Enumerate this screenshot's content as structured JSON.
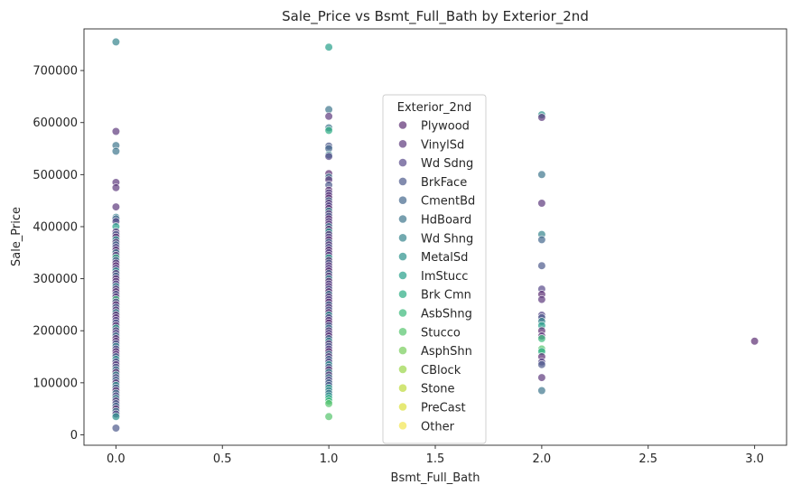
{
  "chart_data": {
    "type": "scatter",
    "title": "Sale_Price vs Bsmt_Full_Bath by Exterior_2nd",
    "xlabel": "Bsmt_Full_Bath",
    "ylabel": "Sale_Price",
    "xlim": [
      -0.15,
      3.15
    ],
    "ylim": [
      -20000,
      780000
    ],
    "x_ticks": [
      0.0,
      0.5,
      1.0,
      1.5,
      2.0,
      2.5,
      3.0
    ],
    "x_tick_labels": [
      "0.0",
      "0.5",
      "1.0",
      "1.5",
      "2.0",
      "2.5",
      "3.0"
    ],
    "y_ticks": [
      0,
      100000,
      200000,
      300000,
      400000,
      500000,
      600000,
      700000
    ],
    "y_tick_labels": [
      "0",
      "100000",
      "200000",
      "300000",
      "400000",
      "500000",
      "600000",
      "700000"
    ],
    "grid": false,
    "legend": {
      "title": "Exterior_2nd",
      "placement": "center",
      "entries": [
        {
          "name": "Plywood",
          "color": "#5c2f73"
        },
        {
          "name": "VinylSd",
          "color": "#5e3a7e"
        },
        {
          "name": "Wd Sdng",
          "color": "#594a8a"
        },
        {
          "name": "BrkFace",
          "color": "#4d5a8c"
        },
        {
          "name": "CmentBd",
          "color": "#45688d"
        },
        {
          "name": "HdBoard",
          "color": "#3e768d"
        },
        {
          "name": "Wd Shng",
          "color": "#36858d"
        },
        {
          "name": "MetalSd",
          "color": "#2b918c"
        },
        {
          "name": "ImStucc",
          "color": "#27a08a"
        },
        {
          "name": "Brk Cmn",
          "color": "#2bad83"
        },
        {
          "name": "AsbShng",
          "color": "#3bb97a"
        },
        {
          "name": "Stucco",
          "color": "#56c46c"
        },
        {
          "name": "AsphShn",
          "color": "#77cd5b"
        },
        {
          "name": "CBlock",
          "color": "#9ad549"
        },
        {
          "name": "Stone",
          "color": "#bdda3c"
        },
        {
          "name": "PreCast",
          "color": "#dbe03c"
        },
        {
          "name": "Other",
          "color": "#f2e550"
        }
      ]
    },
    "series": [
      {
        "x": 0,
        "values": [
          755000,
          583000,
          556000,
          545000,
          485000,
          475000,
          438000,
          418000,
          415000,
          410000,
          400000,
          390000,
          385000,
          380000,
          375000,
          370000,
          365000,
          360000,
          355000,
          350000,
          345000,
          340000,
          335000,
          330000,
          325000,
          320000,
          315000,
          310000,
          305000,
          300000,
          295000,
          290000,
          285000,
          280000,
          275000,
          270000,
          265000,
          260000,
          255000,
          250000,
          245000,
          240000,
          235000,
          230000,
          225000,
          220000,
          215000,
          210000,
          205000,
          200000,
          195000,
          190000,
          185000,
          180000,
          175000,
          170000,
          165000,
          160000,
          155000,
          150000,
          145000,
          140000,
          135000,
          130000,
          125000,
          120000,
          115000,
          110000,
          105000,
          100000,
          95000,
          90000,
          85000,
          80000,
          75000,
          70000,
          65000,
          60000,
          55000,
          50000,
          45000,
          40000,
          35000,
          13000
        ],
        "colors": [
          6,
          1,
          5,
          5,
          1,
          1,
          1,
          6,
          4,
          2,
          8,
          1,
          3,
          0,
          7,
          1,
          4,
          2,
          0,
          5,
          1,
          9,
          3,
          1,
          0,
          2,
          7,
          1,
          4,
          0,
          1,
          2,
          6,
          1,
          0,
          3,
          1,
          10,
          2,
          0,
          4,
          1,
          6,
          0,
          1,
          2,
          3,
          0,
          8,
          1,
          2,
          5,
          0,
          1,
          3,
          6,
          2,
          0,
          1,
          4,
          7,
          2,
          1,
          3,
          5,
          0,
          6,
          2,
          4,
          1,
          7,
          3,
          0,
          5,
          2,
          6,
          1,
          3,
          4,
          0,
          5,
          2,
          7,
          3
        ]
      },
      {
        "x": 1,
        "values": [
          745000,
          625000,
          612000,
          590000,
          585000,
          555000,
          550000,
          538000,
          535000,
          502000,
          495000,
          490000,
          480000,
          470000,
          465000,
          460000,
          455000,
          450000,
          445000,
          440000,
          435000,
          430000,
          425000,
          420000,
          415000,
          410000,
          405000,
          400000,
          395000,
          390000,
          385000,
          380000,
          375000,
          370000,
          365000,
          360000,
          355000,
          350000,
          345000,
          340000,
          335000,
          330000,
          325000,
          320000,
          315000,
          310000,
          305000,
          300000,
          295000,
          290000,
          285000,
          280000,
          275000,
          270000,
          265000,
          260000,
          255000,
          250000,
          245000,
          240000,
          235000,
          230000,
          225000,
          220000,
          215000,
          210000,
          205000,
          200000,
          195000,
          190000,
          185000,
          180000,
          175000,
          170000,
          165000,
          160000,
          155000,
          150000,
          145000,
          140000,
          135000,
          130000,
          125000,
          120000,
          115000,
          110000,
          105000,
          100000,
          95000,
          90000,
          85000,
          80000,
          75000,
          70000,
          65000,
          60000,
          35000
        ],
        "colors": [
          8,
          5,
          1,
          5,
          9,
          3,
          4,
          6,
          2,
          0,
          5,
          1,
          3,
          0,
          2,
          1,
          0,
          4,
          1,
          2,
          0,
          6,
          1,
          3,
          0,
          2,
          1,
          5,
          0,
          7,
          1,
          2,
          0,
          4,
          1,
          3,
          0,
          2,
          1,
          8,
          0,
          3,
          1,
          2,
          0,
          4,
          1,
          6,
          0,
          2,
          1,
          3,
          0,
          5,
          1,
          2,
          0,
          4,
          1,
          3,
          0,
          7,
          2,
          1,
          0,
          3,
          5,
          1,
          2,
          0,
          4,
          6,
          1,
          3,
          2,
          0,
          5,
          1,
          4,
          2,
          7,
          3,
          0,
          6,
          1,
          5,
          2,
          4,
          3,
          8,
          6,
          5,
          7,
          9,
          10,
          11,
          11
        ]
      },
      {
        "x": 2,
        "values": [
          615000,
          610000,
          500000,
          445000,
          385000,
          375000,
          325000,
          280000,
          270000,
          260000,
          230000,
          225000,
          218000,
          210000,
          200000,
          190000,
          185000,
          165000,
          160000,
          150000,
          140000,
          135000,
          110000,
          85000
        ],
        "colors": [
          7,
          1,
          5,
          1,
          6,
          4,
          3,
          2,
          0,
          1,
          2,
          3,
          6,
          8,
          0,
          1,
          10,
          11,
          9,
          0,
          2,
          3,
          1,
          5
        ]
      },
      {
        "x": 3,
        "values": [
          180000
        ],
        "colors": [
          0
        ]
      }
    ]
  }
}
